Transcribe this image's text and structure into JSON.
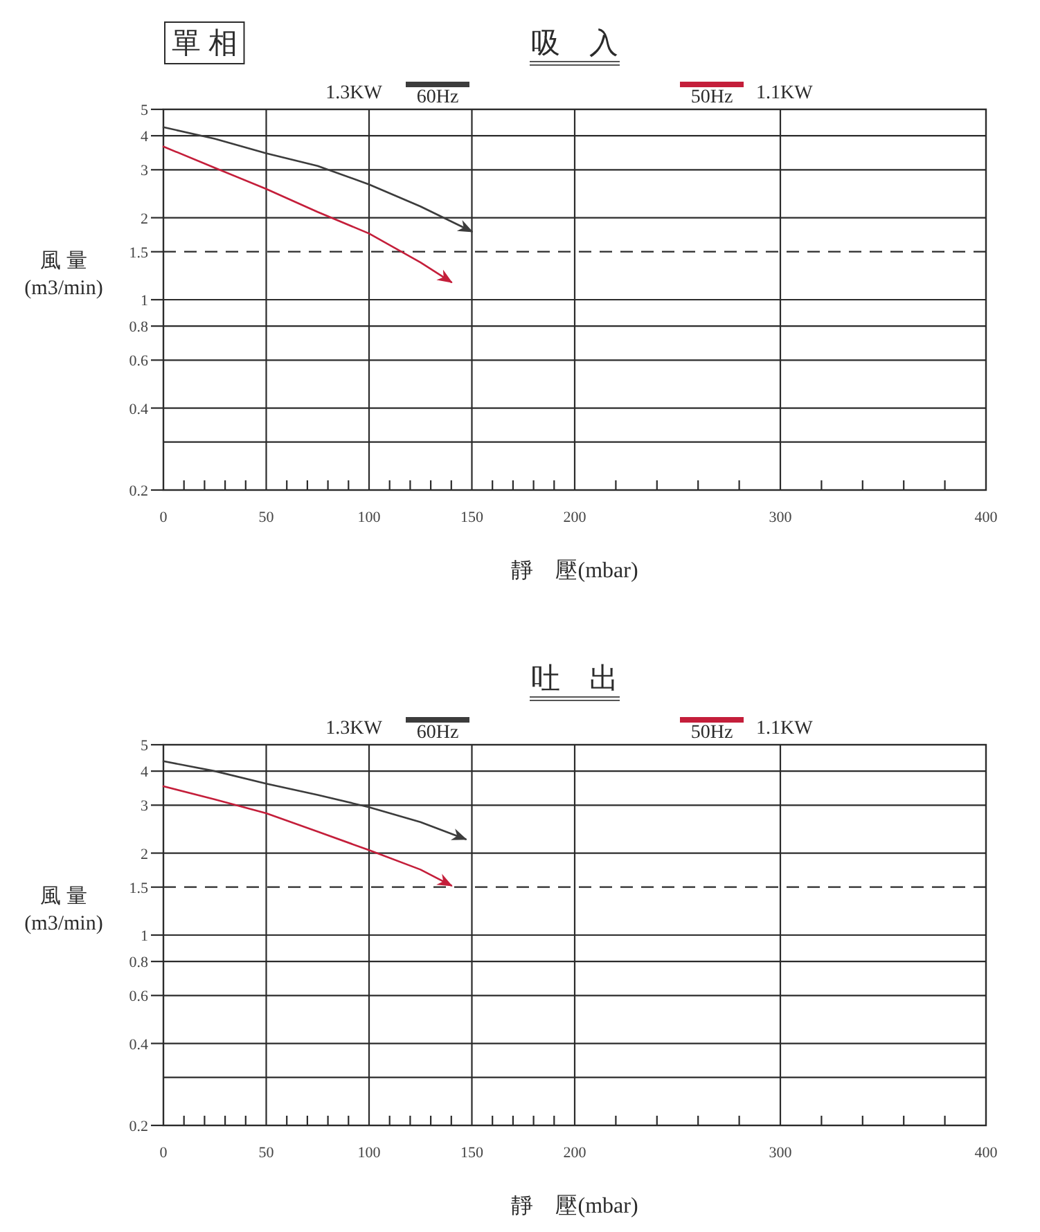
{
  "chart_data": [
    {
      "type": "line",
      "subtitle": "單 相",
      "title": "吸　入",
      "xlabel": "靜　壓(mbar)",
      "ylabel": "風 量\n(m3/min)",
      "annotations": [
        "1.3KW",
        "1.1KW"
      ],
      "log": "y",
      "grid": true,
      "legend": "top",
      "xlim": [
        0,
        400
      ],
      "xticks": [
        0,
        {
          "value": 10,
          "label": null
        },
        {
          "value": 20,
          "label": null
        },
        {
          "value": 30,
          "label": null
        },
        {
          "value": 40,
          "label": null
        },
        50,
        {
          "value": 60,
          "label": null
        },
        {
          "value": 70,
          "label": null
        },
        {
          "value": 80,
          "label": null
        },
        {
          "value": 90,
          "label": null
        },
        100,
        {
          "value": 110,
          "label": null
        },
        {
          "value": 120,
          "label": null
        },
        {
          "value": 130,
          "label": null
        },
        {
          "value": 140,
          "label": null
        },
        150,
        {
          "value": 160,
          "label": null
        },
        {
          "value": 170,
          "label": null
        },
        {
          "value": 180,
          "label": null
        },
        {
          "value": 190,
          "label": null
        },
        200,
        {
          "value": 220,
          "label": null
        },
        {
          "value": 240,
          "label": null
        },
        {
          "value": 260,
          "label": null
        },
        {
          "value": 280,
          "label": null
        },
        300,
        {
          "value": 320,
          "label": null
        },
        {
          "value": 340,
          "label": null
        },
        {
          "value": 360,
          "label": null
        },
        {
          "value": 380,
          "label": null
        },
        400
      ],
      "ylim": [
        0.2,
        5
      ],
      "yticks": [
        0.2,
        {
          "value": 0.3,
          "label": null
        },
        0.4,
        0.6,
        0.8,
        1,
        1.5,
        2,
        3,
        4,
        5
      ],
      "ref_lines": [
        {
          "axis": "y",
          "value": 1.5,
          "line_style": "dashed",
          "color": "#2b2b2b"
        }
      ],
      "series": [
        {
          "name": "60Hz",
          "color": "#3c3c3c",
          "x": [
            0,
            25,
            50,
            75,
            100,
            125,
            150
          ],
          "values": [
            4.3,
            3.9,
            3.45,
            3.1,
            2.65,
            2.2,
            1.78
          ]
        },
        {
          "name": "50Hz",
          "color": "#c41e3a",
          "x": [
            0,
            25,
            50,
            75,
            100,
            125,
            140
          ],
          "values": [
            3.65,
            3.05,
            2.55,
            2.1,
            1.75,
            1.37,
            1.16
          ]
        }
      ]
    },
    {
      "type": "line",
      "title": "吐　出",
      "xlabel": "靜　壓(mbar)",
      "ylabel": "風 量\n(m3/min)",
      "annotations": [
        "1.3KW",
        "1.1KW"
      ],
      "log": "y",
      "grid": true,
      "legend": "top",
      "xlim": [
        0,
        400
      ],
      "xticks": [
        0,
        {
          "value": 10,
          "label": null
        },
        {
          "value": 20,
          "label": null
        },
        {
          "value": 30,
          "label": null
        },
        {
          "value": 40,
          "label": null
        },
        50,
        {
          "value": 60,
          "label": null
        },
        {
          "value": 70,
          "label": null
        },
        {
          "value": 80,
          "label": null
        },
        {
          "value": 90,
          "label": null
        },
        100,
        {
          "value": 110,
          "label": null
        },
        {
          "value": 120,
          "label": null
        },
        {
          "value": 130,
          "label": null
        },
        {
          "value": 140,
          "label": null
        },
        150,
        {
          "value": 160,
          "label": null
        },
        {
          "value": 170,
          "label": null
        },
        {
          "value": 180,
          "label": null
        },
        {
          "value": 190,
          "label": null
        },
        200,
        {
          "value": 220,
          "label": null
        },
        {
          "value": 240,
          "label": null
        },
        {
          "value": 260,
          "label": null
        },
        {
          "value": 280,
          "label": null
        },
        300,
        {
          "value": 320,
          "label": null
        },
        {
          "value": 340,
          "label": null
        },
        {
          "value": 360,
          "label": null
        },
        {
          "value": 380,
          "label": null
        },
        400
      ],
      "ylim": [
        0.2,
        5
      ],
      "yticks": [
        0.2,
        {
          "value": 0.3,
          "label": null
        },
        0.4,
        0.6,
        0.8,
        1,
        1.5,
        2,
        3,
        4,
        5
      ],
      "ref_lines": [
        {
          "axis": "y",
          "value": 1.5,
          "line_style": "dashed",
          "color": "#2b2b2b"
        }
      ],
      "series": [
        {
          "name": "60Hz",
          "color": "#3c3c3c",
          "x": [
            0,
            25,
            50,
            75,
            100,
            125,
            147
          ],
          "values": [
            4.35,
            4.0,
            3.6,
            3.27,
            2.95,
            2.6,
            2.25
          ]
        },
        {
          "name": "50Hz",
          "color": "#c41e3a",
          "x": [
            0,
            25,
            50,
            75,
            100,
            125,
            140
          ],
          "values": [
            3.52,
            3.15,
            2.8,
            2.4,
            2.05,
            1.74,
            1.52
          ]
        }
      ]
    }
  ]
}
